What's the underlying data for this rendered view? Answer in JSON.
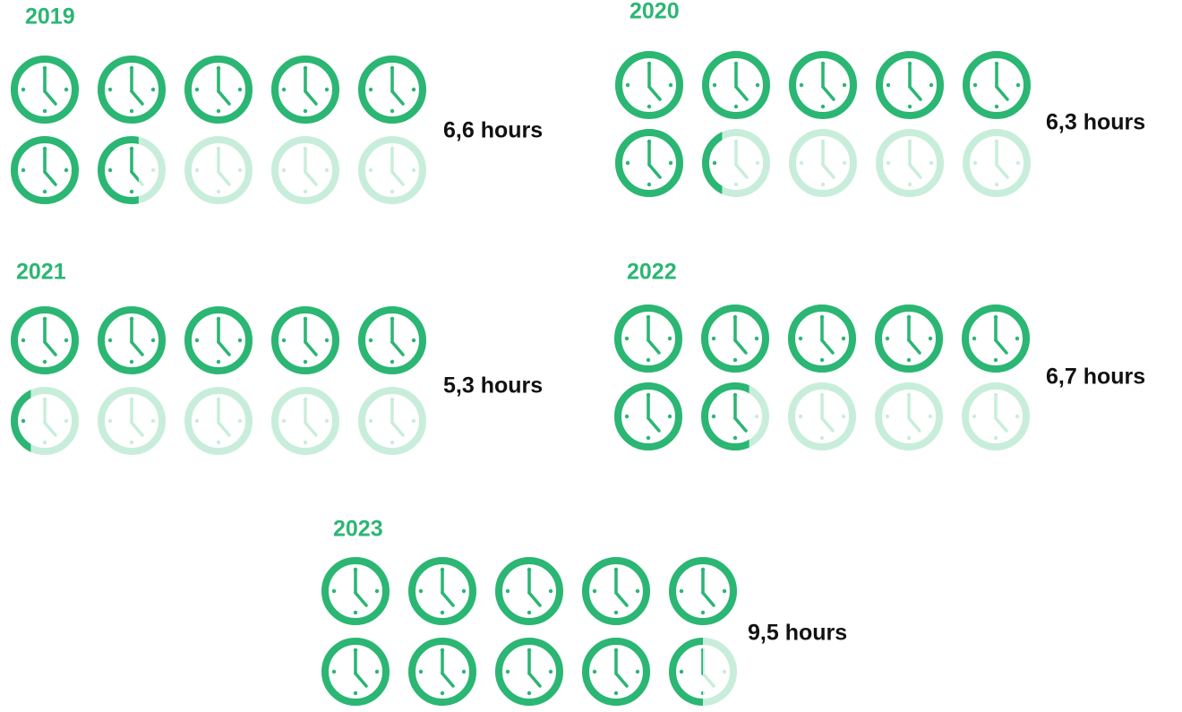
{
  "chart_data": [
    {
      "type": "pictogram",
      "title": "2019",
      "values": [
        6.6
      ],
      "value_labels": [
        "6,6 hours"
      ],
      "color": "#2bb673",
      "empty_color": "#c8eedb"
    },
    {
      "type": "pictogram",
      "title": "2020",
      "values": [
        6.3
      ],
      "value_labels": [
        "6,3 hours"
      ],
      "color": "#2bb673",
      "empty_color": "#c8eedb"
    },
    {
      "type": "pictogram",
      "title": "2021",
      "values": [
        5.3
      ],
      "value_labels": [
        "5,3 hours"
      ],
      "color": "#2bb673",
      "empty_color": "#c8eedb"
    },
    {
      "type": "pictogram",
      "title": "2022",
      "values": [
        6.7
      ],
      "value_labels": [
        "6,7 hours"
      ],
      "color": "#2bb673",
      "empty_color": "#c8eedb"
    },
    {
      "type": "pictogram",
      "title": "2023",
      "values": [
        9.5
      ],
      "value_labels": [
        "9,5 hours"
      ],
      "color": "#2bb673",
      "empty_color": "#c8eedb"
    }
  ]
}
